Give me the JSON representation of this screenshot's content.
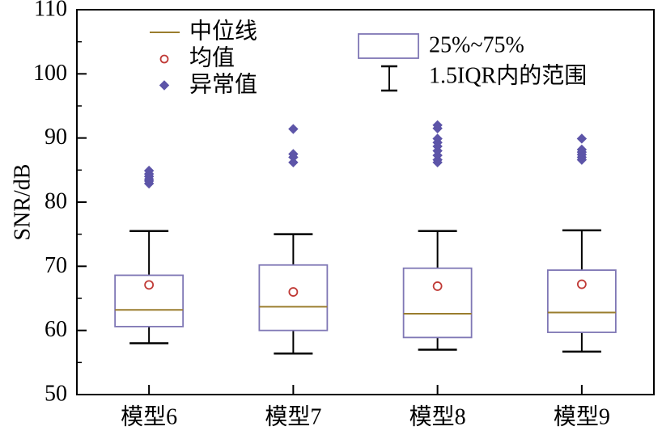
{
  "chart_data": {
    "type": "boxplot",
    "title": "",
    "xlabel": "",
    "ylabel": "SNR/dB",
    "ylim": [
      50,
      110
    ],
    "yticks": [
      50,
      60,
      70,
      80,
      90,
      100,
      110
    ],
    "y_minor_step": 5,
    "grid": false,
    "categories": [
      "模型6",
      "模型7",
      "模型8",
      "模型9"
    ],
    "series": [
      {
        "category": "模型6",
        "whisker_low": 58.0,
        "q1": 60.6,
        "median": 63.2,
        "q3": 68.6,
        "whisker_high": 75.5,
        "mean": 67.1,
        "outliers": [
          82.9,
          83.3,
          83.6,
          84.0,
          84.4,
          84.9
        ]
      },
      {
        "category": "模型7",
        "whisker_low": 56.4,
        "q1": 60.0,
        "median": 63.7,
        "q3": 70.2,
        "whisker_high": 75.0,
        "mean": 66.0,
        "outliers": [
          86.2,
          87.0,
          87.5,
          91.4
        ]
      },
      {
        "category": "模型8",
        "whisker_low": 57.0,
        "q1": 58.9,
        "median": 62.6,
        "q3": 69.7,
        "whisker_high": 75.5,
        "mean": 66.9,
        "outliers": [
          86.2,
          86.6,
          87.3,
          88.0,
          88.7,
          89.3,
          89.9,
          91.5,
          92.0
        ]
      },
      {
        "category": "模型9",
        "whisker_low": 56.7,
        "q1": 59.7,
        "median": 62.8,
        "q3": 69.4,
        "whisker_high": 75.6,
        "mean": 67.2,
        "outliers": [
          86.6,
          87.0,
          87.4,
          87.8,
          88.2,
          89.9
        ]
      }
    ],
    "legend": {
      "position": "top-inside",
      "median_label": "中位线",
      "mean_label": "均值",
      "outlier_label": "异常值",
      "box_label": "25%~75%",
      "whisker_label": "1.5IQR内的范围"
    },
    "colors": {
      "box_stroke": "#7f77b5",
      "box_fill": "#ffffff",
      "median_line": "#9a7d2e",
      "mean_marker": "#c03a36",
      "outlier_marker": "#5d55a8",
      "whisker": "#000000",
      "axis": "#000000",
      "background": "#ffffff"
    }
  }
}
